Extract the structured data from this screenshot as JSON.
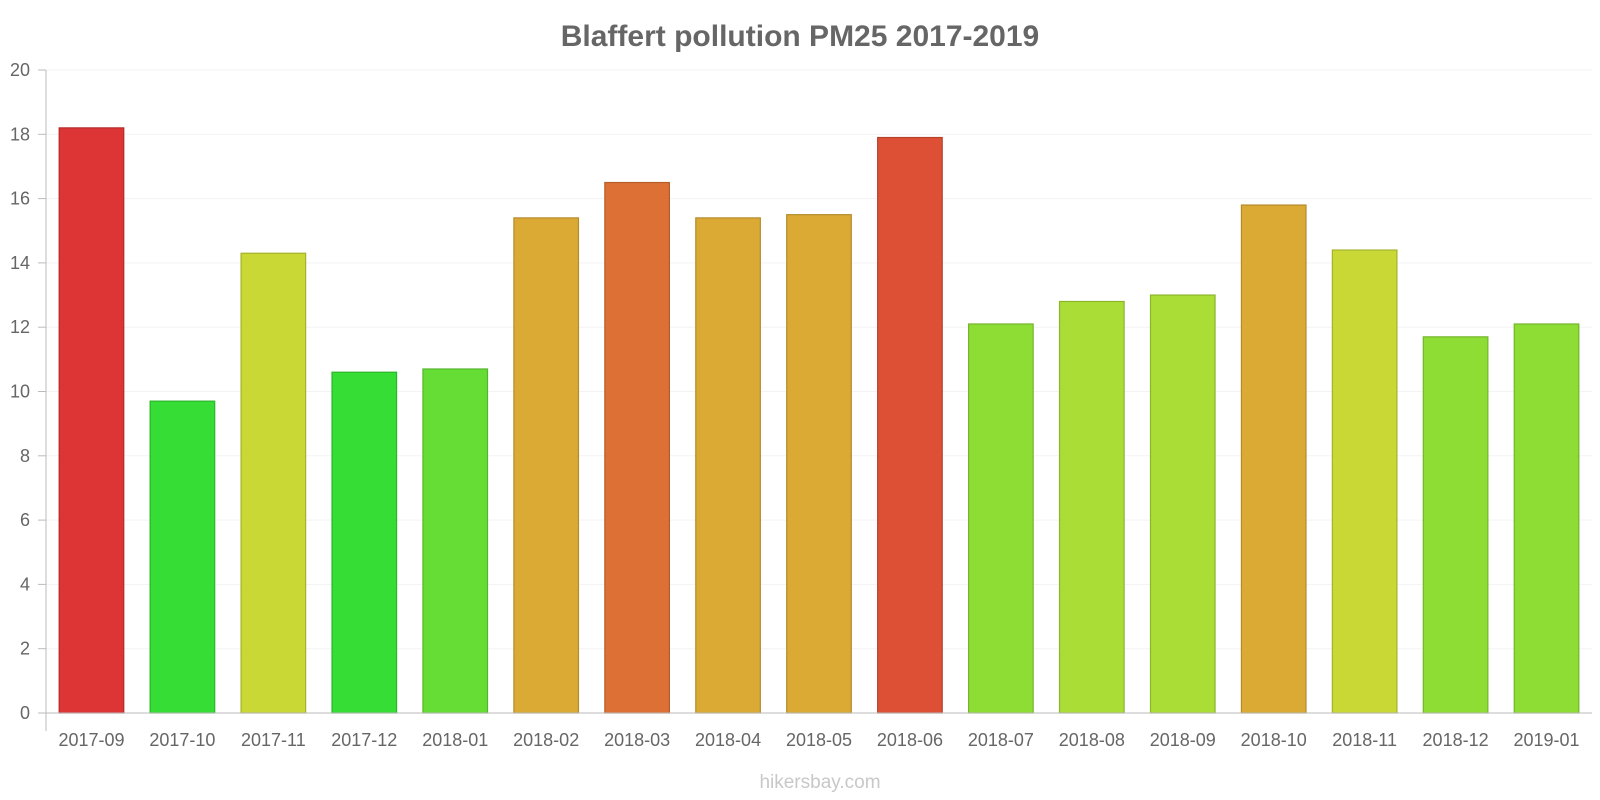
{
  "chart_data": {
    "type": "bar",
    "title": "Blaffert pollution PM25 2017-2019",
    "xlabel": "",
    "ylabel": "",
    "ylim": [
      0,
      20
    ],
    "yticks": [
      "0",
      "2",
      "4",
      "6",
      "8",
      "10",
      "12",
      "14",
      "16",
      "18",
      "20"
    ],
    "categories": [
      "2017-09",
      "2017-10",
      "2017-11",
      "2017-12",
      "2018-01",
      "2018-02",
      "2018-03",
      "2018-04",
      "2018-05",
      "2018-06",
      "2018-07",
      "2018-08",
      "2018-09",
      "2018-10",
      "2018-11",
      "2018-12",
      "2019-01"
    ],
    "values": [
      18.2,
      9.7,
      14.3,
      10.6,
      10.7,
      15.4,
      16.5,
      15.4,
      15.5,
      17.9,
      12.1,
      12.8,
      13.0,
      15.8,
      14.4,
      11.7,
      12.1
    ],
    "colors": [
      "#dd3535",
      "#35dd35",
      "#c9d835",
      "#35dd35",
      "#66dd35",
      "#dbaa35",
      "#dd7035",
      "#dbaa35",
      "#dbaa35",
      "#dd5035",
      "#8ddd35",
      "#aadd35",
      "#aadd35",
      "#dbaa35",
      "#c9d835",
      "#8ddd35",
      "#8ddd35"
    ],
    "grid": true
  },
  "credit": "hikersbay.com"
}
